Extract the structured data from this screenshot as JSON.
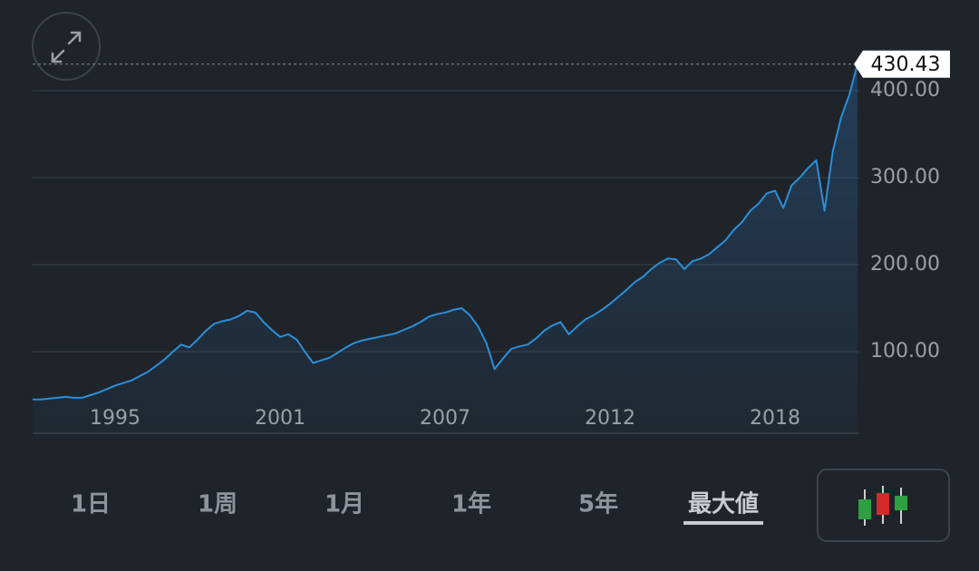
{
  "chart_data": {
    "type": "line",
    "categories": [
      null,
      null,
      null,
      null,
      null,
      null,
      null,
      null,
      null,
      null,
      "1995",
      null,
      null,
      null,
      null,
      null,
      null,
      null,
      null,
      null,
      null,
      null,
      null,
      null,
      null,
      null,
      null,
      null,
      null,
      null,
      "2001",
      null,
      null,
      null,
      null,
      null,
      null,
      null,
      null,
      null,
      null,
      null,
      null,
      null,
      null,
      null,
      null,
      null,
      null,
      null,
      "2007",
      null,
      null,
      null,
      null,
      null,
      null,
      null,
      null,
      null,
      null,
      null,
      null,
      null,
      null,
      null,
      null,
      null,
      null,
      null,
      "2012",
      null,
      null,
      null,
      null,
      null,
      null,
      null,
      null,
      null,
      null,
      null,
      null,
      null,
      null,
      null,
      null,
      null,
      null,
      null,
      "2018",
      null,
      null,
      null,
      null,
      null,
      null,
      null,
      null,
      null,
      null
    ],
    "values": [
      45,
      45,
      46,
      47,
      48,
      47,
      47,
      50,
      53,
      57,
      61,
      64,
      67,
      72,
      77,
      84,
      91,
      100,
      108,
      105,
      114,
      124,
      132,
      135,
      137,
      141,
      147,
      145,
      134,
      125,
      117,
      120,
      114,
      100,
      87,
      90,
      93,
      99,
      105,
      110,
      113,
      115,
      117,
      119,
      121,
      125,
      129,
      134,
      140,
      143,
      145,
      148,
      150,
      142,
      129,
      110,
      80,
      92,
      103,
      106,
      108,
      115,
      124,
      130,
      134,
      120,
      129,
      137,
      142,
      148,
      155,
      163,
      171,
      180,
      186,
      195,
      202,
      207,
      206,
      195,
      204,
      207,
      212,
      220,
      228,
      240,
      249,
      262,
      270,
      282,
      285,
      265,
      291,
      300,
      311,
      320,
      262,
      330,
      369,
      395,
      430.43
    ],
    "color": "#2b8fd8",
    "last_price": {
      "value": 430.43,
      "label": "430.43"
    },
    "ylim": [
      5,
      475
    ],
    "yticks": [
      {
        "value": 100,
        "label": "100.00"
      },
      {
        "value": 200,
        "label": "200.00"
      },
      {
        "value": 300,
        "label": "300.00"
      },
      {
        "value": 400,
        "label": "400.00"
      }
    ],
    "grid": true
  },
  "tabs": {
    "items": [
      "1日",
      "1周",
      "1月",
      "1年",
      "5年",
      "最大値"
    ],
    "selected": 5
  }
}
